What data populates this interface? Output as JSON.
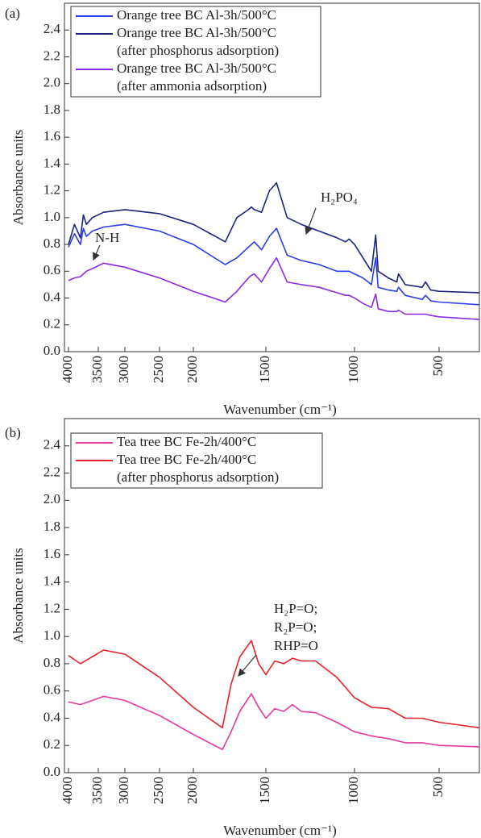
{
  "chart_data": [
    {
      "type": "line",
      "panel_label": "(a)",
      "xlabel": "Wavenumber (cm⁻¹)",
      "ylabel": "Absorbance units",
      "x": [
        4000,
        3900,
        3800,
        3750,
        3700,
        3600,
        3400,
        3000,
        2500,
        2000,
        1780,
        1700,
        1620,
        1600,
        1580,
        1530,
        1480,
        1440,
        1380,
        1300,
        1200,
        1100,
        1050,
        1030,
        1000,
        950,
        900,
        875,
        860,
        800,
        750,
        740,
        700,
        600,
        580,
        550,
        500,
        400
      ],
      "series": [
        {
          "name": "Orange tree BC Al-3h/500°C",
          "color": "#2a3fe6",
          "values": [
            0.78,
            0.88,
            0.8,
            0.92,
            0.86,
            0.9,
            0.93,
            0.95,
            0.9,
            0.8,
            0.65,
            0.7,
            0.78,
            0.8,
            0.82,
            0.76,
            0.86,
            0.92,
            0.72,
            0.68,
            0.65,
            0.6,
            0.6,
            0.6,
            0.58,
            0.55,
            0.5,
            0.7,
            0.48,
            0.46,
            0.45,
            0.48,
            0.42,
            0.39,
            0.42,
            0.38,
            0.37,
            0.35
          ]
        },
        {
          "name": "Orange tree BC Al-3h/500°C (after phosphorus adsorption)",
          "color": "#1a237e",
          "values": [
            0.8,
            0.95,
            0.85,
            1.02,
            0.95,
            1.0,
            1.04,
            1.06,
            1.03,
            0.95,
            0.82,
            1.0,
            1.06,
            1.08,
            1.06,
            1.04,
            1.2,
            1.26,
            1.0,
            0.95,
            0.9,
            0.85,
            0.82,
            0.84,
            0.8,
            0.7,
            0.6,
            0.87,
            0.6,
            0.55,
            0.52,
            0.58,
            0.5,
            0.48,
            0.52,
            0.46,
            0.45,
            0.44
          ]
        },
        {
          "name": "Orange tree BC Al-3h/500°C (after ammonia adsorption)",
          "color": "#8a2be2",
          "values": [
            0.53,
            0.55,
            0.56,
            0.58,
            0.6,
            0.62,
            0.66,
            0.63,
            0.55,
            0.45,
            0.37,
            0.45,
            0.55,
            0.57,
            0.58,
            0.52,
            0.62,
            0.7,
            0.52,
            0.5,
            0.48,
            0.44,
            0.42,
            0.42,
            0.4,
            0.36,
            0.33,
            0.43,
            0.32,
            0.3,
            0.3,
            0.31,
            0.28,
            0.28,
            0.28,
            0.27,
            0.26,
            0.24
          ]
        }
      ],
      "annotations": [
        "N-H",
        "H₂PO₄"
      ],
      "xlim": [
        4050,
        400
      ],
      "xticks": [
        4000,
        3500,
        3000,
        2500,
        2000,
        1500,
        1000,
        500
      ],
      "ylim": [
        0,
        2.6
      ],
      "yticks": [
        {
          "value": 0,
          "label": "0.0"
        },
        0.2,
        0.4,
        0.6,
        0.8,
        {
          "value": 1,
          "label": "1.0"
        },
        1.2,
        1.4,
        1.6,
        1.8,
        {
          "value": 2,
          "label": "2.0"
        },
        2.2,
        2.4
      ]
    },
    {
      "type": "line",
      "panel_label": "(b)",
      "xlabel": "Wavenumber (cm⁻¹)",
      "ylabel": "Absorbance units",
      "x": [
        4000,
        3800,
        3400,
        3000,
        2500,
        2000,
        1800,
        1740,
        1680,
        1600,
        1550,
        1500,
        1450,
        1400,
        1350,
        1300,
        1220,
        1100,
        1000,
        900,
        800,
        700,
        600,
        500,
        400
      ],
      "series": [
        {
          "name": "Tea tree BC Fe-2h/400°C",
          "color": "#e6399b",
          "values": [
            0.52,
            0.5,
            0.56,
            0.53,
            0.42,
            0.28,
            0.17,
            0.3,
            0.45,
            0.58,
            0.48,
            0.4,
            0.47,
            0.45,
            0.5,
            0.45,
            0.44,
            0.37,
            0.3,
            0.27,
            0.25,
            0.22,
            0.22,
            0.2,
            0.19
          ]
        },
        {
          "name": "Tea tree BC Fe-2h/400°C (after phosphorus adsorption)",
          "color": "#e8232a",
          "values": [
            0.86,
            0.8,
            0.9,
            0.87,
            0.7,
            0.48,
            0.33,
            0.65,
            0.85,
            0.97,
            0.8,
            0.72,
            0.82,
            0.8,
            0.84,
            0.82,
            0.82,
            0.7,
            0.55,
            0.48,
            0.47,
            0.4,
            0.4,
            0.37,
            0.33
          ]
        }
      ],
      "annotations": [
        "H₂P=O;",
        "R₂P=O;",
        "RHP=O"
      ],
      "xlim": [
        4050,
        400
      ],
      "xticks": [
        4000,
        3500,
        3000,
        2500,
        2000,
        1500,
        1000,
        500
      ],
      "ylim": [
        0,
        2.6
      ],
      "yticks": [
        {
          "value": 0,
          "label": "0.0"
        },
        0.2,
        0.4,
        0.6,
        0.8,
        {
          "value": 1,
          "label": "1.0"
        },
        1.2,
        1.4,
        1.6,
        1.8,
        {
          "value": 2,
          "label": "2.0"
        },
        2.2,
        2.4
      ]
    }
  ]
}
